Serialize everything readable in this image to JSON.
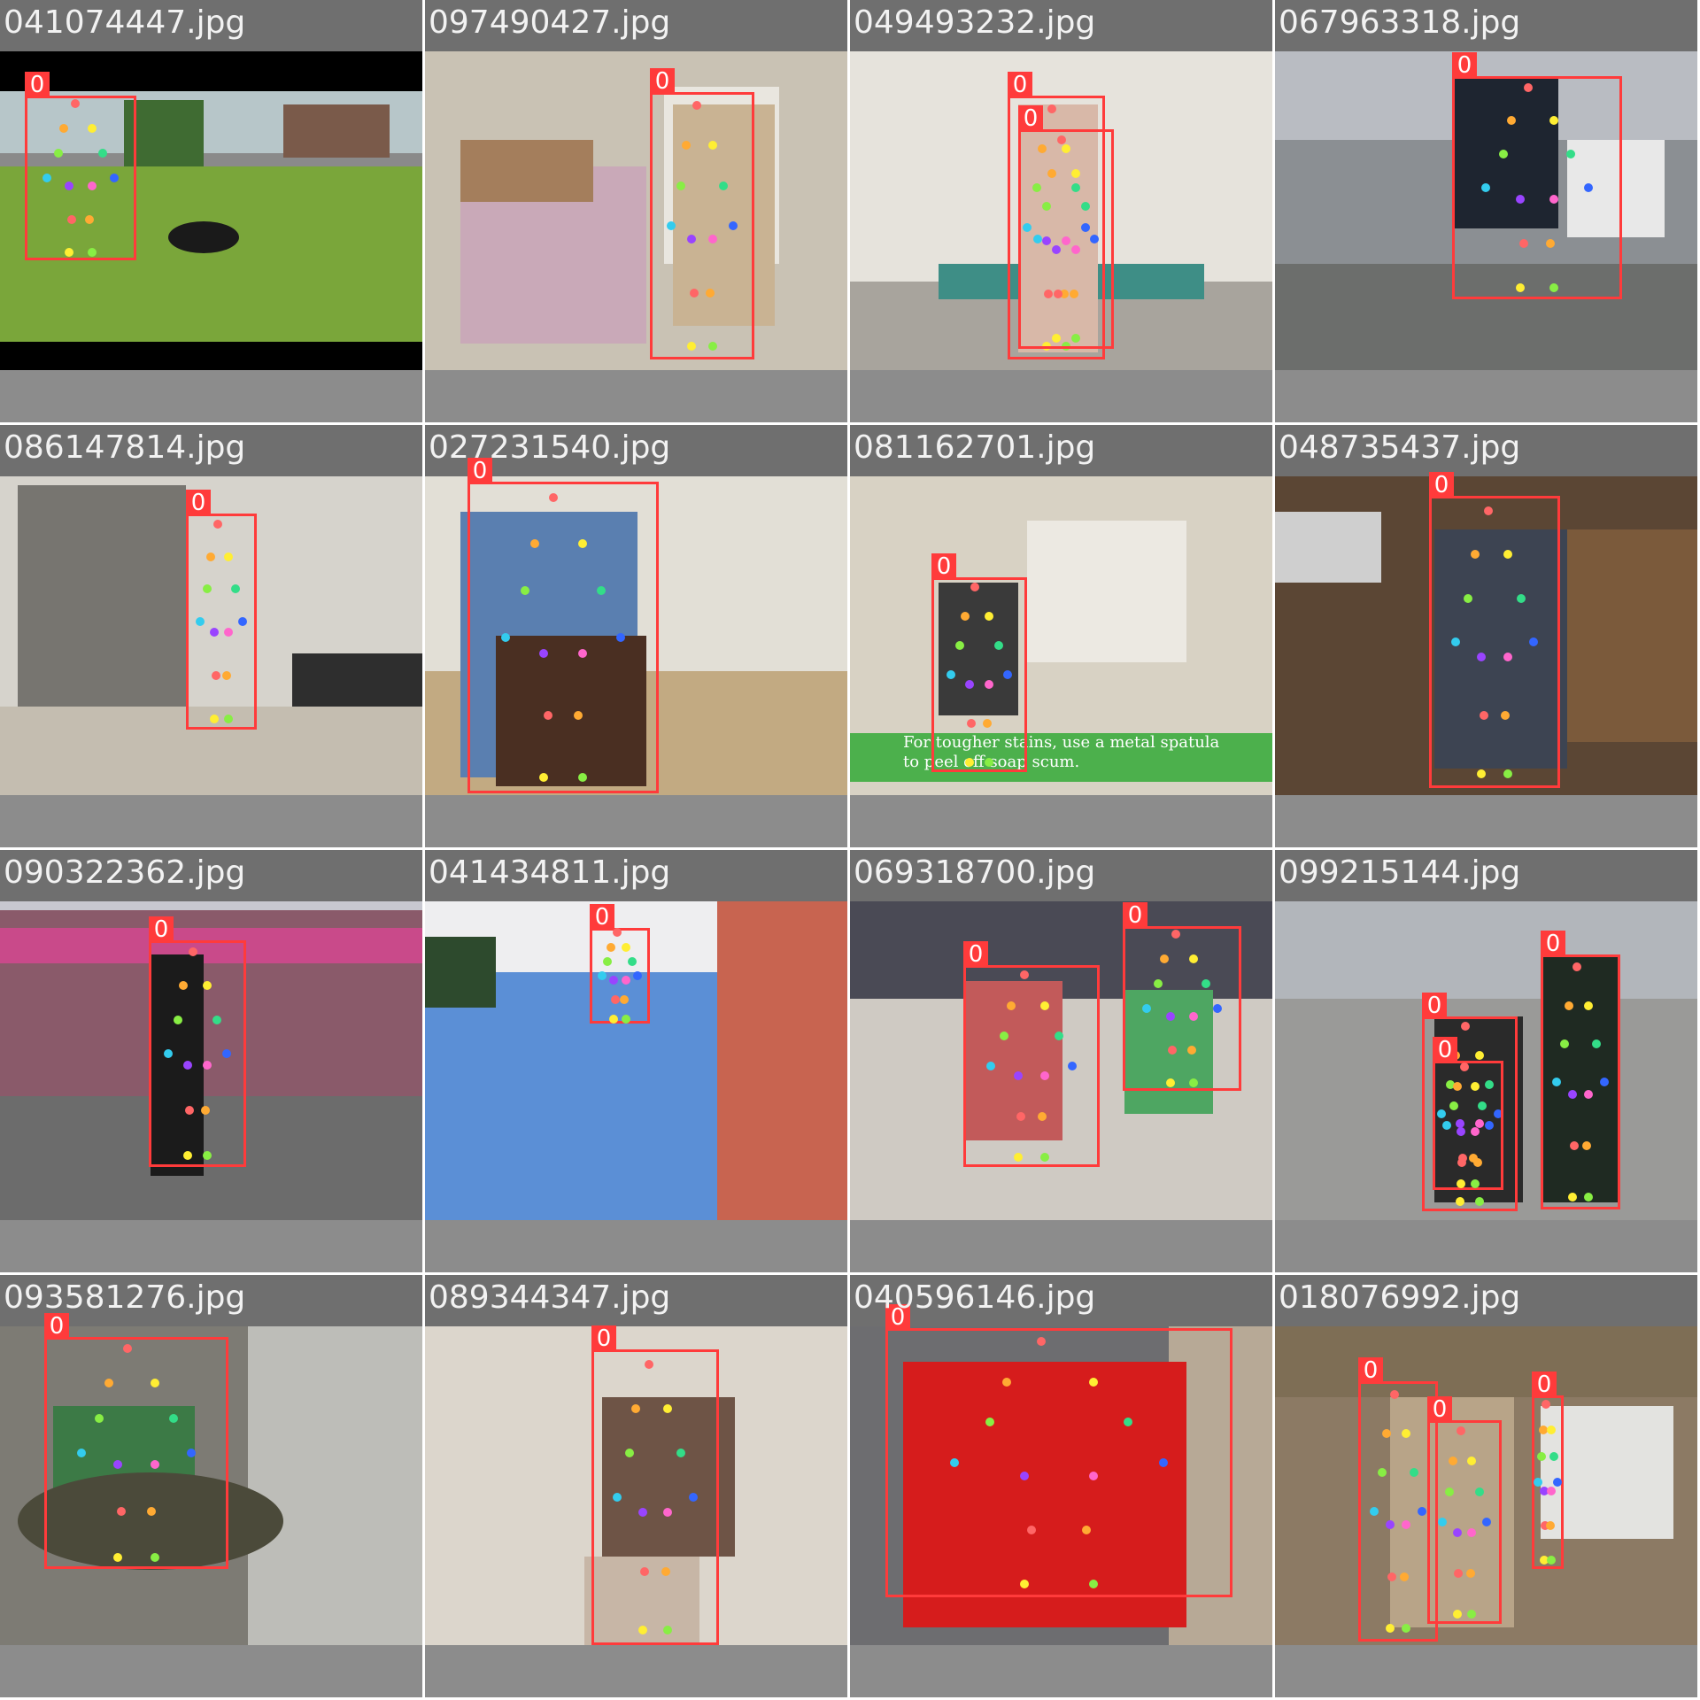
{
  "grid": {
    "rows": 4,
    "cols": 4
  },
  "colors": {
    "box": "#ff3b3b",
    "box_label_text": "#ffffff",
    "header_band": "#6f6f6f",
    "footer_band": "#8c8c8c",
    "keypoint_palette": [
      "#ff6666",
      "#ffaa33",
      "#ffee33",
      "#88ee44",
      "#33dd88",
      "#33ccee",
      "#3366ff",
      "#9944ff",
      "#ff66cc"
    ]
  },
  "tiles": [
    {
      "filename": "041074447.jpg",
      "scene": "lawn-dog",
      "label": "0"
    },
    {
      "filename": "097490427.jpg",
      "scene": "bedroom",
      "label": "0"
    },
    {
      "filename": "049493232.jpg",
      "scene": "clinic",
      "label": "0"
    },
    {
      "filename": "067963318.jpg",
      "scene": "jump-rope-street",
      "label": "0"
    },
    {
      "filename": "086147814.jpg",
      "scene": "restroom",
      "label": "0"
    },
    {
      "filename": "027231540.jpg",
      "scene": "woodshop",
      "label": "0"
    },
    {
      "filename": "081162701.jpg",
      "scene": "bathroom-cleaning",
      "label": "0",
      "caption": "For tougher stains, use a metal spatula to peel off soap scum."
    },
    {
      "filename": "048735437.jpg",
      "scene": "workshop-shelves",
      "label": "0"
    },
    {
      "filename": "090322362.jpg",
      "scene": "street-donut-shop",
      "label": "0"
    },
    {
      "filename": "041434811.jpg",
      "scene": "inflatable-slide",
      "label": "0"
    },
    {
      "filename": "069318700.jpg",
      "scene": "toddlers-floor",
      "label": "0"
    },
    {
      "filename": "099215144.jpg",
      "scene": "parking-lot-firefighters",
      "label": "0"
    },
    {
      "filename": "093581276.jpg",
      "scene": "kitchen-fish",
      "label": "0"
    },
    {
      "filename": "089344347.jpg",
      "scene": "paint-bucket",
      "label": "0"
    },
    {
      "filename": "040596146.jpg",
      "scene": "red-shirt-car",
      "label": "0"
    },
    {
      "filename": "018076992.jpg",
      "scene": "barn-cattle",
      "label": "0"
    }
  ]
}
